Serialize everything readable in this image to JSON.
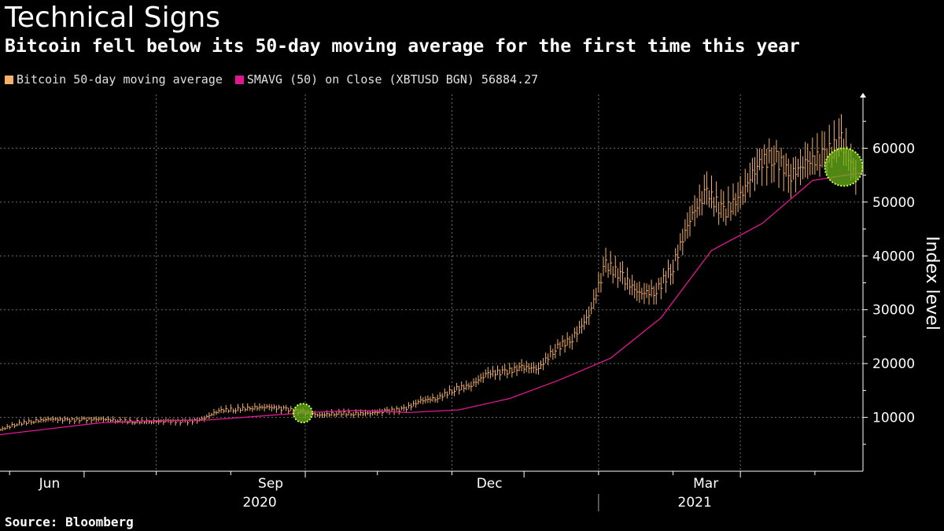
{
  "title": "Technical Signs",
  "subtitle": "Bitcoin fell below its 50-day moving average for the first time this year",
  "legend": {
    "series1": "Bitcoin 50-day moving average",
    "series2": "SMAVG (50)  on Close (XBTUSD BGN) 56884.27"
  },
  "source": "Source: Bloomberg",
  "colors": {
    "price": "#f5b06a",
    "ma": "#e0188f",
    "highlight": "#6bb31a",
    "grid": "#6e6e6e"
  },
  "chart_data": {
    "type": "line",
    "title": "Technical Signs",
    "ylabel": "Index level",
    "ylim": [
      0,
      70000
    ],
    "yticks": [
      10000,
      20000,
      30000,
      40000,
      50000,
      60000
    ],
    "ytick_labels": [
      "10000",
      "20000",
      "30000",
      "40000",
      "50000",
      "60000"
    ],
    "xlim": [
      "2020-04-27",
      "2021-04-21"
    ],
    "xticks": [
      {
        "date": "2020-06-01",
        "label": "Jun"
      },
      {
        "date": "2020-09-01",
        "label": "Sep"
      },
      {
        "date": "2020-12-01",
        "label": "Dec"
      },
      {
        "date": "2021-03-01",
        "label": "Mar"
      }
    ],
    "year_labels": [
      {
        "date": "2020-09-01",
        "label": "2020"
      },
      {
        "date": "2021-03-01",
        "label": "2021"
      }
    ],
    "legend_position": "top-left",
    "grid": true,
    "series": [
      {
        "name": "Bitcoin 50-day moving average",
        "style": "ohlc-bars",
        "x": [
          "2020-04-27",
          "2020-05-04",
          "2020-05-11",
          "2020-05-18",
          "2020-05-25",
          "2020-06-01",
          "2020-06-08",
          "2020-06-15",
          "2020-06-22",
          "2020-06-29",
          "2020-07-06",
          "2020-07-13",
          "2020-07-20",
          "2020-07-27",
          "2020-08-03",
          "2020-08-10",
          "2020-08-17",
          "2020-08-24",
          "2020-08-31",
          "2020-09-07",
          "2020-09-14",
          "2020-09-21",
          "2020-09-28",
          "2020-10-05",
          "2020-10-12",
          "2020-10-19",
          "2020-10-26",
          "2020-11-02",
          "2020-11-09",
          "2020-11-16",
          "2020-11-23",
          "2020-11-30",
          "2020-12-07",
          "2020-12-14",
          "2020-12-21",
          "2020-12-28",
          "2021-01-04",
          "2021-01-11",
          "2021-01-18",
          "2021-01-25",
          "2021-02-01",
          "2021-02-08",
          "2021-02-15",
          "2021-02-22",
          "2021-03-01",
          "2021-03-08",
          "2021-03-15",
          "2021-03-22",
          "2021-03-29",
          "2021-04-05",
          "2021-04-12",
          "2021-04-19"
        ],
        "values": [
          7700,
          8800,
          9300,
          9700,
          9500,
          9600,
          9700,
          9400,
          9200,
          9200,
          9300,
          9200,
          9600,
          11300,
          11500,
          11800,
          11900,
          11500,
          11000,
          10400,
          10800,
          10700,
          10800,
          11200,
          11500,
          13100,
          13600,
          15200,
          16000,
          18200,
          18400,
          19300,
          19100,
          22800,
          24600,
          29000,
          38500,
          36000,
          33000,
          33500,
          38000,
          47000,
          52000,
          48000,
          51000,
          57000,
          58500,
          55000,
          57500,
          58500,
          61500,
          54000
        ]
      },
      {
        "name": "SMAVG (50)  on Close (XBTUSD BGN) 56884.27",
        "style": "line",
        "x": [
          "2020-04-27",
          "2020-05-18",
          "2020-06-08",
          "2020-07-01",
          "2020-07-22",
          "2020-08-12",
          "2020-09-02",
          "2020-09-23",
          "2020-10-14",
          "2020-11-04",
          "2020-11-25",
          "2020-12-16",
          "2021-01-06",
          "2021-01-27",
          "2021-02-17",
          "2021-03-10",
          "2021-03-31",
          "2021-04-21"
        ],
        "values": [
          6800,
          7900,
          9000,
          9400,
          9500,
          10200,
          10900,
          11300,
          10900,
          11400,
          13500,
          17000,
          21000,
          28500,
          41000,
          46000,
          54000,
          55500
        ]
      }
    ],
    "annotations": [
      {
        "type": "circle-highlight",
        "x": "2020-08-31",
        "y": 10800,
        "size": "small"
      },
      {
        "type": "circle-highlight",
        "x": "2021-04-13",
        "y": 56500,
        "size": "large"
      }
    ]
  }
}
